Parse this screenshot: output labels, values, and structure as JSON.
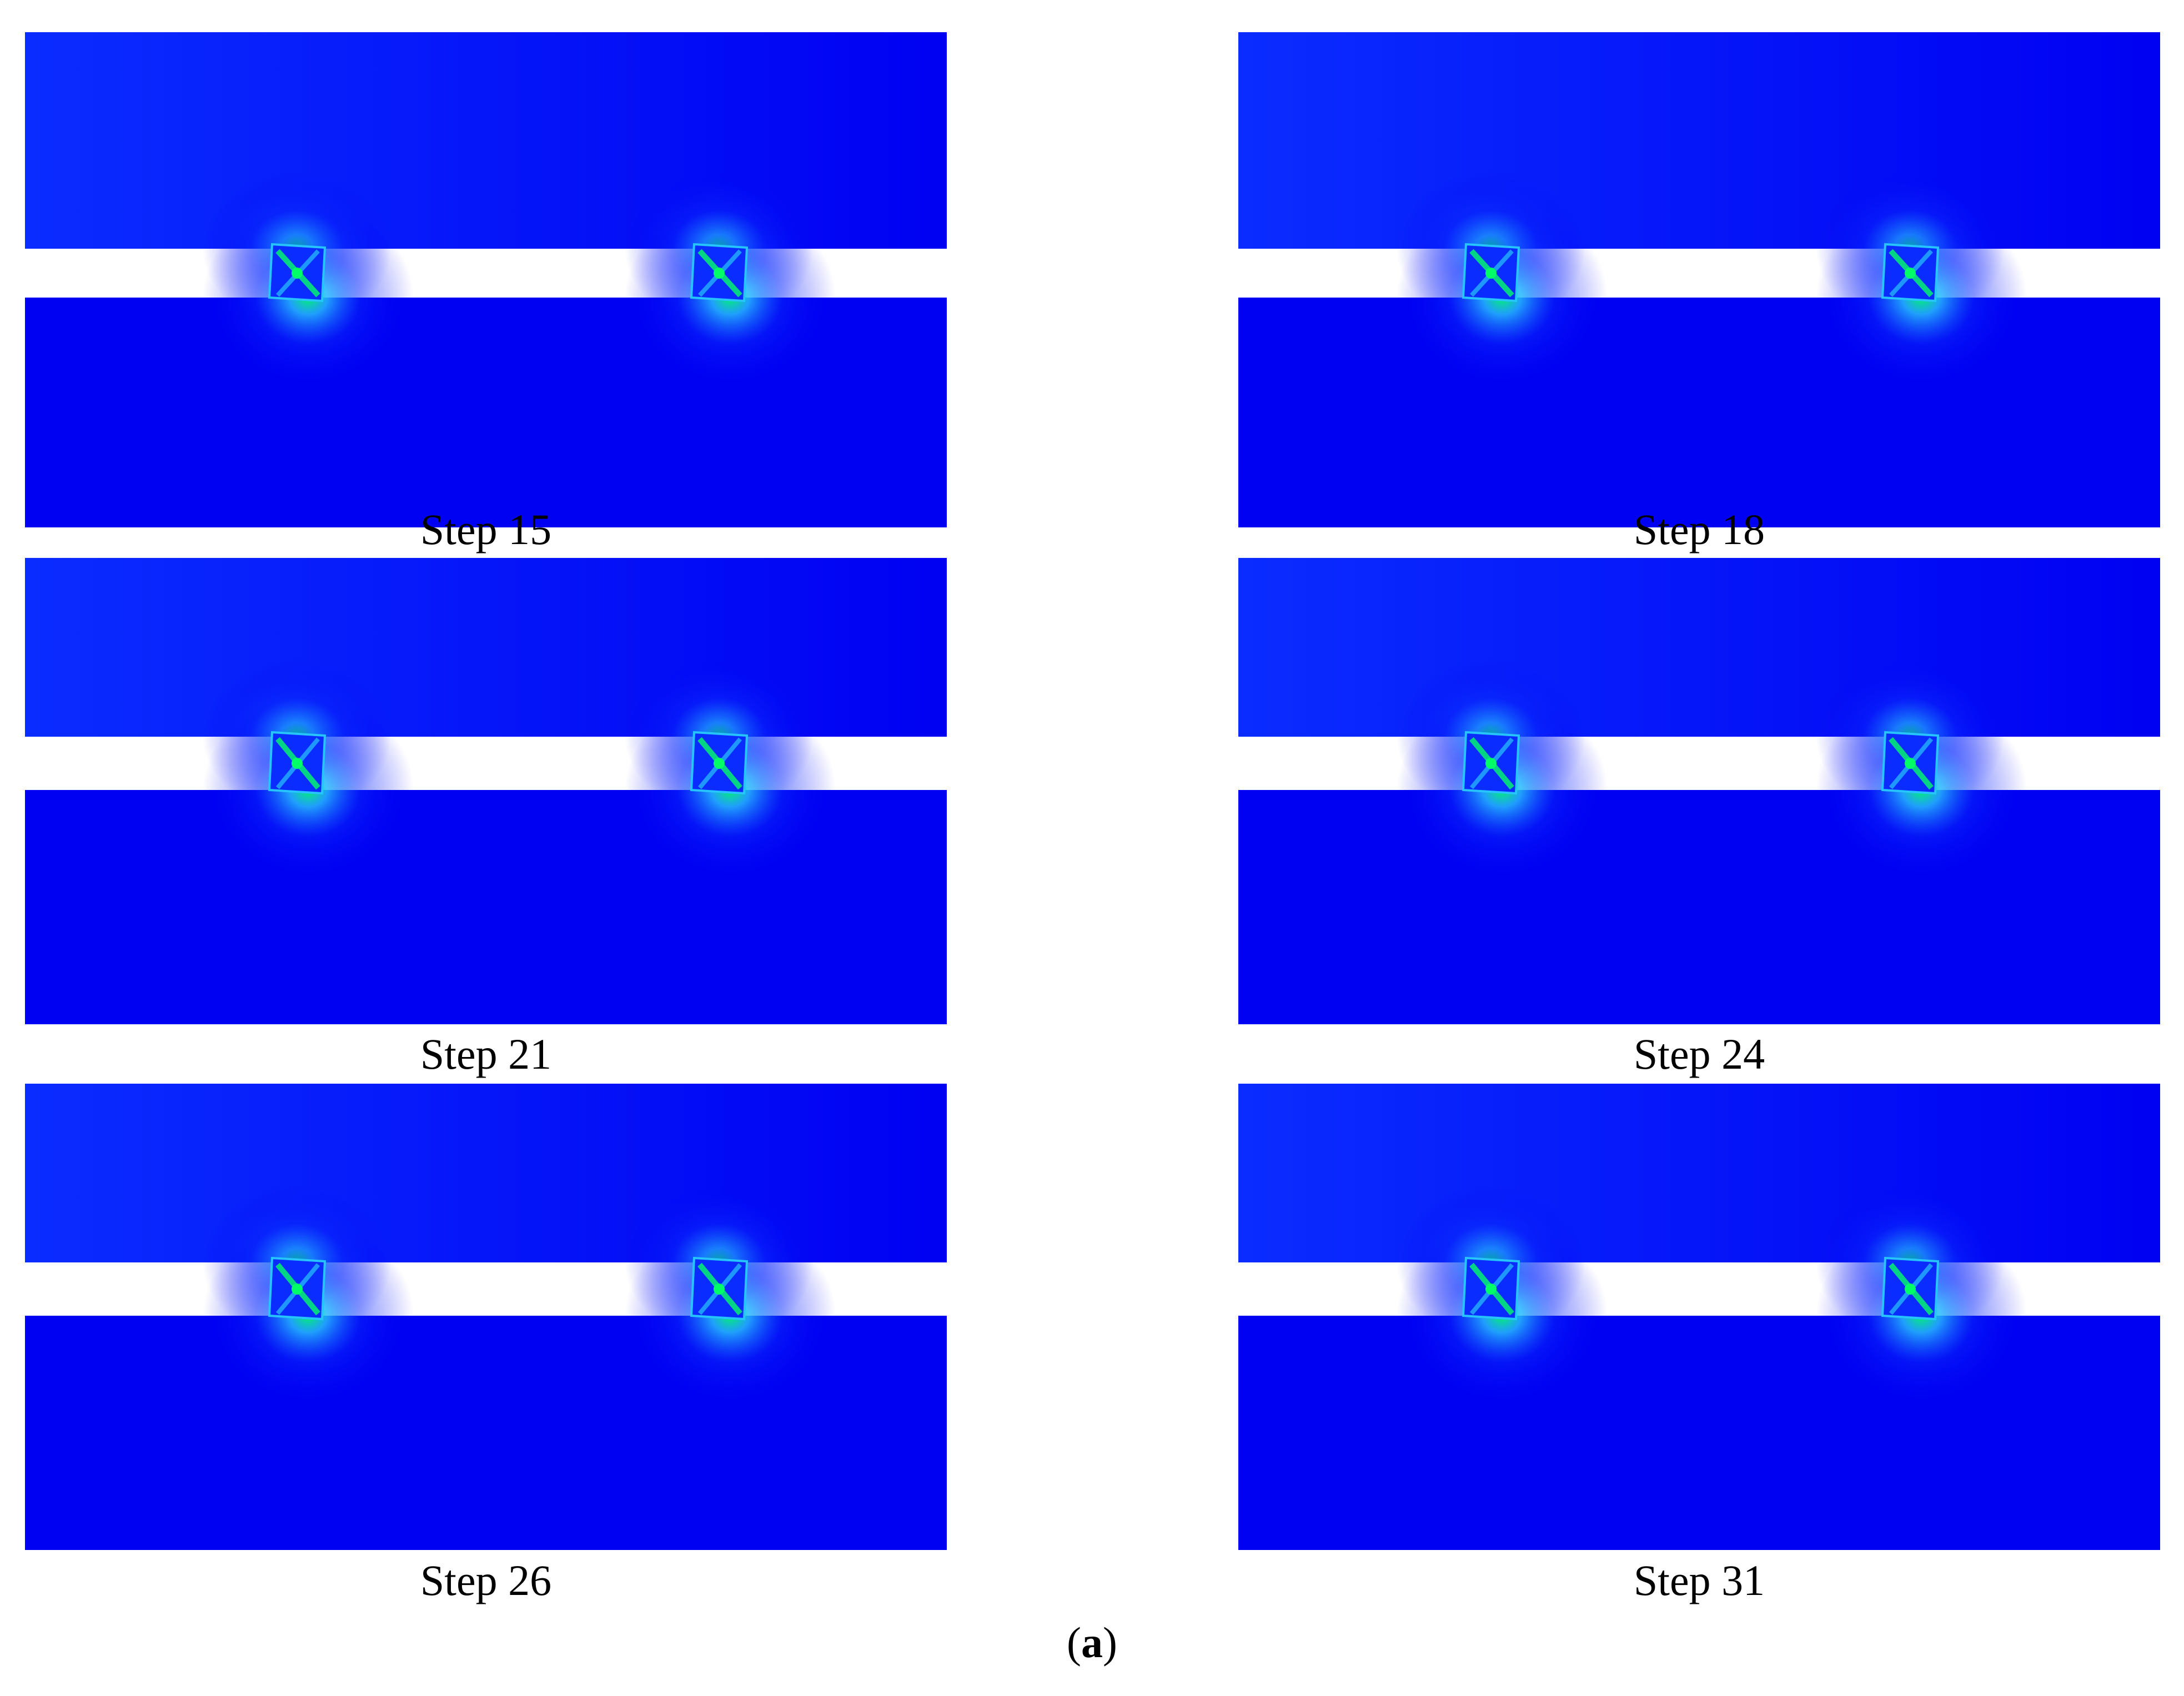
{
  "figure_label": {
    "open": "(",
    "letter": "a",
    "close": ")"
  },
  "colors": {
    "background": "#0000f2",
    "low_stress": "#0a2cff",
    "mid_stress": "#27c5ff",
    "high_stress": "#00ff66",
    "gap": "#ffffff"
  },
  "panels": [
    {
      "caption": "Step 15"
    },
    {
      "caption": "Step 18"
    },
    {
      "caption": "Step 21"
    },
    {
      "caption": "Step 24"
    },
    {
      "caption": "Step 26"
    },
    {
      "caption": "Step 31"
    }
  ]
}
